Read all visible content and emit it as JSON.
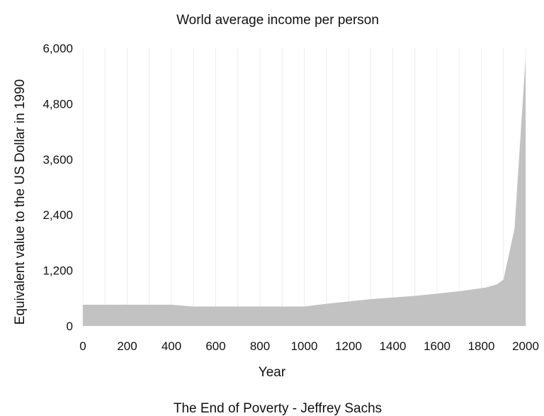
{
  "chart_data": {
    "type": "area",
    "title": "World average income per person",
    "xlabel": "Year",
    "ylabel": "Equivalent value to the US Dollar in 1990",
    "caption": "The End of Poverty - Jeffrey Sachs",
    "xlim": [
      0,
      2000
    ],
    "ylim": [
      0,
      6000
    ],
    "x_ticks": [
      0,
      200,
      400,
      600,
      800,
      1000,
      1200,
      1400,
      1600,
      1800,
      2000
    ],
    "x_tick_labels": [
      "0",
      "200",
      "400",
      "600",
      "800",
      "1000",
      "1200",
      "1400",
      "1600",
      "1800",
      "2000"
    ],
    "y_ticks": [
      0,
      1200,
      2400,
      3600,
      4800,
      6000
    ],
    "y_tick_labels": [
      "0",
      "1,200",
      "2,400",
      "3,600",
      "4,800",
      "6,000"
    ],
    "grid": "vertical",
    "series": [
      {
        "x": [
          0,
          400,
          500,
          1000,
          1100,
          1300,
          1500,
          1600,
          1700,
          1820,
          1870,
          1900,
          1950,
          2000
        ],
        "y": [
          460,
          460,
          420,
          420,
          480,
          580,
          650,
          700,
          750,
          830,
          900,
          1000,
          2100,
          5800
        ]
      }
    ],
    "colors": {
      "area_fill": "#c2c2c2",
      "grid": "#ececec",
      "text": "#111111"
    }
  }
}
